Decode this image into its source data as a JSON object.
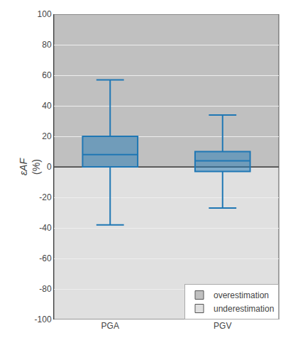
{
  "chart_data": {
    "type": "box",
    "categories": [
      "PGA",
      "PGV"
    ],
    "whisker_low": [
      -38,
      -27
    ],
    "q1": [
      0,
      -3
    ],
    "median": [
      8,
      4
    ],
    "q3": [
      20,
      10
    ],
    "whisker_high": [
      57,
      34
    ],
    "ylabel": [
      "εAF",
      "(%)"
    ],
    "ylim": [
      -100,
      100
    ],
    "yticks": [
      -100,
      -80,
      -60,
      -40,
      -20,
      0,
      20,
      40,
      60,
      80,
      100
    ],
    "grid": true,
    "legend": "lower right",
    "zones": [
      {
        "name": "overestimation",
        "from": 0,
        "to": 100,
        "color": "#c0c0c0"
      },
      {
        "name": "underestimation",
        "from": -100,
        "to": 0,
        "color": "#e0e0e0"
      }
    ]
  }
}
